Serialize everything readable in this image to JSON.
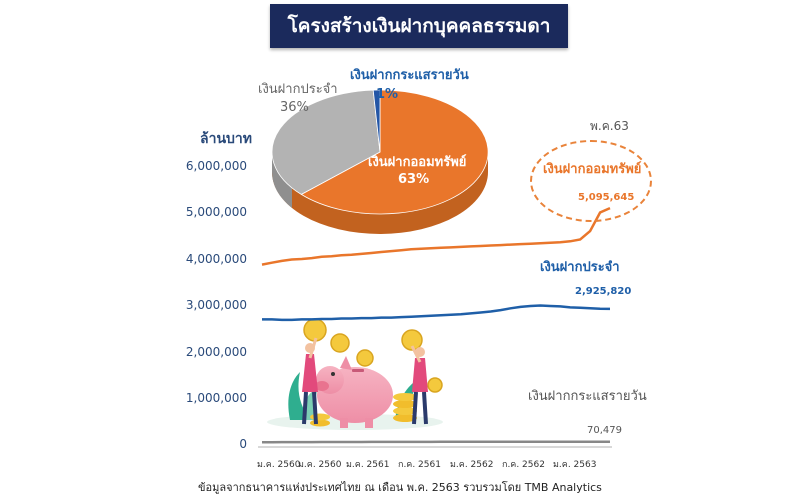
{
  "header": {
    "title": "โครงสร้างเงินฝากบุคคลธรรมดา"
  },
  "footnote": "ข้อมูลจากธนาคารแห่งประเทศไทย ณ เดือน พ.ค. 2563 รวบรวมโดย TMB Analytics",
  "colors": {
    "savings": "#e9762b",
    "fixed": "#1f5fa8",
    "current": "#777777",
    "axis_text": "#2a4a7a",
    "banner": "#1b2a5c"
  },
  "chart_data": [
    {
      "type": "line",
      "ylabel": "ล้านบาท",
      "ylim": [
        0,
        6000000
      ],
      "yticks": [
        "0",
        "1,000,000",
        "2,000,000",
        "3,000,000",
        "4,000,000",
        "5,000,000",
        "6,000,000"
      ],
      "x_tick_labels": [
        "ม.ค. 2560",
        "ม.ค. 2560",
        "ม.ค. 2561",
        "ก.ค. 2561",
        "ม.ค. 2562",
        "ก.ค. 2562",
        "ม.ค. 2563"
      ],
      "grid": false,
      "annotation_period": "พ.ค.63",
      "series": [
        {
          "name": "เงินฝากออมทรัพย์",
          "color": "#e9762b",
          "end_label": "5,095,645",
          "values": [
            3880000,
            3920000,
            3960000,
            3990000,
            4000000,
            4020000,
            4050000,
            4060000,
            4080000,
            4090000,
            4110000,
            4130000,
            4150000,
            4170000,
            4190000,
            4210000,
            4220000,
            4230000,
            4240000,
            4250000,
            4260000,
            4270000,
            4280000,
            4290000,
            4300000,
            4310000,
            4320000,
            4330000,
            4340000,
            4350000,
            4360000,
            4380000,
            4420000,
            4600000,
            5000000,
            5095645
          ]
        },
        {
          "name": "เงินฝากประจำ",
          "color": "#1f5fa8",
          "end_label": "2,925,820",
          "values": [
            2700000,
            2700000,
            2690000,
            2690000,
            2700000,
            2700000,
            2710000,
            2710000,
            2720000,
            2720000,
            2730000,
            2730000,
            2740000,
            2740000,
            2750000,
            2760000,
            2770000,
            2780000,
            2790000,
            2800000,
            2810000,
            2830000,
            2850000,
            2870000,
            2900000,
            2940000,
            2970000,
            2990000,
            3000000,
            2990000,
            2980000,
            2960000,
            2950000,
            2940000,
            2930000,
            2925820
          ]
        },
        {
          "name": "เงินฝากกระแสรายวัน",
          "color": "#888888",
          "end_label": "70,479",
          "values": [
            60000,
            61000,
            62000,
            62000,
            63000,
            63000,
            64000,
            64000,
            65000,
            65000,
            65000,
            66000,
            66000,
            66000,
            67000,
            67000,
            67000,
            67000,
            68000,
            68000,
            68000,
            68000,
            68000,
            69000,
            69000,
            69000,
            69000,
            69000,
            70000,
            70000,
            70000,
            70000,
            70000,
            70000,
            70400,
            70479
          ]
        }
      ]
    },
    {
      "type": "pie",
      "slices": [
        {
          "label": "เงินฝากออมทรัพย์",
          "pct_label": "63%",
          "value": 63,
          "color": "#e9762b"
        },
        {
          "label": "เงินฝากประจำ",
          "pct_label": "36%",
          "value": 36,
          "color": "#b3b3b3"
        },
        {
          "label": "เงินฝากกระแสรายวัน",
          "pct_label": "1%",
          "value": 1,
          "color": "#2456a6"
        }
      ]
    }
  ]
}
